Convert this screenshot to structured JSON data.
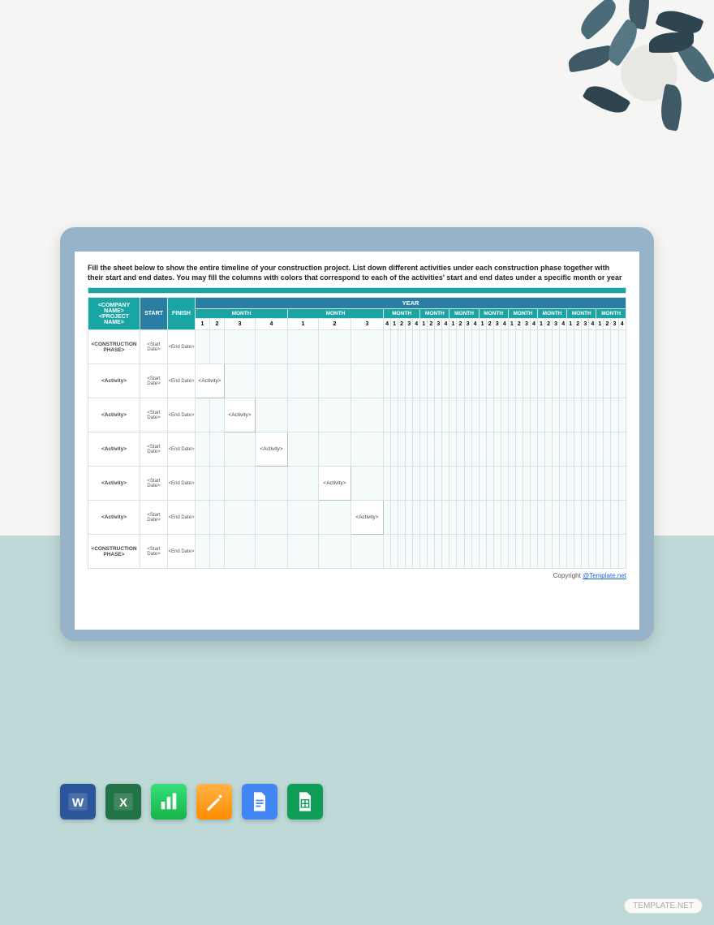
{
  "instructions": "Fill the sheet below to show the entire timeline of your construction project. List down different activities under each construction phase together with their start and end dates. You may fill the columns with colors that correspond to each of the activities' start and end dates under a specific month or year",
  "headers": {
    "company": "<COMPANY NAME>",
    "project": "<PROJECT NAME>",
    "start": "START",
    "finish": "FINISH",
    "year": "YEAR",
    "month": "MONTH"
  },
  "weeks_wide": [
    "1",
    "2",
    "3",
    "4",
    "1",
    "2",
    "3"
  ],
  "weeks_rep": [
    "4",
    "1",
    "2",
    "3",
    "4",
    "1",
    "2",
    "3",
    "4",
    "1",
    "2",
    "3",
    "4",
    "1",
    "2",
    "3",
    "4",
    "1",
    "2",
    "3",
    "4",
    "1",
    "2",
    "3",
    "4",
    "1",
    "2",
    "3",
    "4",
    "1",
    "2",
    "3",
    "4"
  ],
  "rows": [
    {
      "label": "<CONSTRUCTION PHASE>",
      "start": "<Start Date>",
      "end": "<End Date>",
      "activity_at": -1
    },
    {
      "label": "<Activity>",
      "start": "<Start Date>",
      "end": "<End Date>",
      "activity_at": 0
    },
    {
      "label": "<Activity>",
      "start": "<Start Date>",
      "end": "<End Date>",
      "activity_at": 2
    },
    {
      "label": "<Activity>",
      "start": "<Start Date>",
      "end": "<End Date>",
      "activity_at": 3
    },
    {
      "label": "<Activity>",
      "start": "<Start Date>",
      "end": "<End Date>",
      "activity_at": 5
    },
    {
      "label": "<Activity>",
      "start": "<Start Date>",
      "end": "<End Date>",
      "activity_at": 6
    },
    {
      "label": "<CONSTRUCTION PHASE>",
      "start": "<Start Date>",
      "end": "<End Date>",
      "activity_at": -1
    }
  ],
  "activity_text": "<Activity>",
  "copyright": {
    "prefix": "Copyright ",
    "link": "@Template.net"
  },
  "colors": {
    "teal": "#19a5a3",
    "blue": "#2a7ea3",
    "folder": "#96b3ca",
    "page_bottom": "#bfd9d9"
  },
  "apps": [
    {
      "name": "word",
      "bg": "#2b579a"
    },
    {
      "name": "excel",
      "bg": "#217346"
    },
    {
      "name": "numbers",
      "bg": "#1fcf5a"
    },
    {
      "name": "pages",
      "bg": "#ff9500"
    },
    {
      "name": "gdocs",
      "bg": "#4285f4"
    },
    {
      "name": "gsheets",
      "bg": "#0f9d58"
    }
  ],
  "watermark": "TEMPLATE.NET"
}
